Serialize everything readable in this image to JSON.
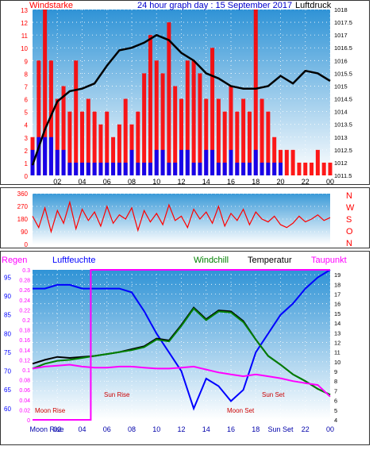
{
  "chart_data": [
    {
      "type": "bar",
      "title": "24 hour graph day : 15 September 2017",
      "left_axis_label": "Windstarke",
      "right_axis_label": "Luftdruck",
      "left_ticks": [
        "0",
        "1",
        "2",
        "3",
        "4",
        "5",
        "6",
        "7",
        "8",
        "9",
        "10",
        "11",
        "12",
        "13"
      ],
      "right_ticks": [
        "1011.5",
        "1012",
        "1012.5",
        "1013",
        "1013.5",
        "1014",
        "1014.5",
        "1015",
        "1015.5",
        "1016",
        "1016.5",
        "1017",
        "1017.5",
        "1018"
      ],
      "x_ticks": [
        "02",
        "04",
        "06",
        "08",
        "10",
        "12",
        "14",
        "16",
        "18",
        "20",
        "22",
        "00"
      ],
      "ylim_left": [
        0,
        13
      ],
      "ylim_right": [
        1011.5,
        1018
      ],
      "series": [
        {
          "name": "gust",
          "color": "#ff0000",
          "x": [
            0,
            0.5,
            1,
            1.5,
            2,
            2.5,
            3,
            3.5,
            4,
            4.5,
            5,
            5.5,
            6,
            6.5,
            7,
            7.5,
            8,
            8.5,
            9,
            9.5,
            10,
            10.5,
            11,
            11.5,
            12,
            12.5,
            13,
            13.5,
            14,
            14.5,
            15,
            15.5,
            16,
            16.5,
            17,
            17.5,
            18,
            18.5,
            19,
            19.5,
            20,
            20.5,
            21,
            21.5,
            22,
            22.5,
            23,
            23.5,
            24
          ],
          "values": [
            3,
            9,
            13,
            9,
            6,
            7,
            5,
            9,
            5,
            6,
            5,
            4,
            5,
            3,
            4,
            6,
            4,
            5,
            8,
            11,
            9,
            8,
            12,
            7,
            6,
            9,
            9,
            8,
            6,
            10,
            6,
            5,
            7,
            5,
            6,
            5,
            13,
            6,
            5,
            3,
            2,
            2,
            2,
            1,
            1,
            1,
            2,
            1,
            1
          ]
        },
        {
          "name": "average",
          "color": "#0000ff",
          "x": [
            0,
            0.5,
            1,
            1.5,
            2,
            2.5,
            3,
            3.5,
            4,
            4.5,
            5,
            5.5,
            6,
            6.5,
            7,
            7.5,
            8,
            8.5,
            9,
            9.5,
            10,
            10.5,
            11,
            11.5,
            12,
            12.5,
            13,
            13.5,
            14,
            14.5,
            15,
            15.5,
            16,
            16.5,
            17,
            17.5,
            18,
            18.5,
            19,
            19.5,
            20,
            20.5,
            21,
            21.5,
            22,
            22.5,
            23,
            23.5,
            24
          ],
          "values": [
            2,
            3,
            3,
            3,
            2,
            2,
            1,
            1,
            1,
            1,
            1,
            1,
            1,
            1,
            1,
            1,
            2,
            1,
            1,
            1,
            2,
            2,
            1,
            1,
            2,
            2,
            1,
            1,
            2,
            2,
            1,
            1,
            2,
            1,
            1,
            1,
            2,
            1,
            1,
            1,
            1,
            0,
            0,
            0,
            0,
            0,
            0,
            0,
            0
          ]
        },
        {
          "name": "pressure",
          "color": "#000000",
          "axis": "right",
          "x": [
            0,
            1,
            2,
            3,
            4,
            5,
            6,
            7,
            8,
            9,
            10,
            11,
            12,
            13,
            14,
            15,
            16,
            17,
            18,
            19,
            20,
            21,
            22,
            23,
            24
          ],
          "values": [
            1011.9,
            1013.3,
            1014.4,
            1014.8,
            1014.9,
            1015.1,
            1015.8,
            1016.4,
            1016.5,
            1016.7,
            1017.0,
            1016.8,
            1016.3,
            1016.0,
            1015.5,
            1015.3,
            1015.0,
            1014.9,
            1014.9,
            1015.0,
            1015.4,
            1015.1,
            1015.6,
            1015.5,
            1015.2
          ]
        }
      ]
    },
    {
      "type": "line",
      "left_ticks": [
        "0",
        "90",
        "180",
        "270",
        "360"
      ],
      "ylim": [
        0,
        360
      ],
      "right_labels": [
        "N",
        "W",
        "S",
        "O",
        "N"
      ],
      "series": [
        {
          "name": "wind direction",
          "color": "#ff0000",
          "x": [
            0,
            0.5,
            1,
            1.5,
            2,
            2.5,
            3,
            3.5,
            4,
            4.5,
            5,
            5.5,
            6,
            6.5,
            7,
            7.5,
            8,
            8.5,
            9,
            9.5,
            10,
            10.5,
            11,
            11.5,
            12,
            12.5,
            13,
            13.5,
            14,
            14.5,
            15,
            15.5,
            16,
            16.5,
            17,
            17.5,
            18,
            18.5,
            19,
            19.5,
            20,
            20.5,
            21,
            21.5,
            22,
            22.5,
            23,
            23.5,
            24
          ],
          "values": [
            200,
            120,
            260,
            90,
            240,
            150,
            300,
            110,
            250,
            170,
            230,
            130,
            270,
            150,
            210,
            180,
            260,
            100,
            240,
            160,
            220,
            140,
            280,
            170,
            200,
            120,
            250,
            180,
            230,
            150,
            270,
            130,
            220,
            170,
            250,
            140,
            230,
            180,
            160,
            200,
            140,
            120,
            150,
            200,
            160,
            180,
            210,
            170,
            190
          ]
        }
      ]
    },
    {
      "type": "line",
      "legend": [
        "Regen",
        "Luftfeuchte",
        "Windchill",
        "Temperatur",
        "Taupunkt"
      ],
      "legend_colors": [
        "#ff00ff",
        "#0000ff",
        "#008000",
        "#000000",
        "#ff00ff"
      ],
      "rain_ticks": [
        "0",
        "0.02",
        "0.04",
        "0.06",
        "0.08",
        "0.1",
        "0.12",
        "0.14",
        "0.16",
        "0.18",
        "0.2",
        "0.22",
        "0.24",
        "0.26",
        "0.28",
        "0.3"
      ],
      "humidity_ticks": [
        "60",
        "65",
        "70",
        "75",
        "80",
        "85",
        "90",
        "95"
      ],
      "temp_ticks": [
        "4",
        "5",
        "6",
        "7",
        "8",
        "9",
        "10",
        "11",
        "12",
        "13",
        "14",
        "15",
        "16",
        "17",
        "18",
        "19"
      ],
      "x_ticks": [
        "Moon Rise",
        "02",
        "04",
        "06",
        "08",
        "10",
        "12",
        "14",
        "16",
        "18",
        "Sun Set",
        "22",
        "00"
      ],
      "annotations": [
        "Moon Rise",
        "Sun Rise",
        "Moon Set",
        "Sun Set"
      ],
      "ylim_humidity": [
        57,
        97
      ],
      "ylim_temp": [
        4,
        19.5
      ],
      "ylim_rain": [
        0,
        0.3
      ],
      "series": [
        {
          "name": "Luftfeuchte",
          "color": "#0000ff",
          "axis": "humidity",
          "x": [
            0,
            1,
            2,
            3,
            4,
            5,
            6,
            7,
            8,
            9,
            10,
            11,
            12,
            13,
            14,
            15,
            16,
            17,
            18,
            19,
            20,
            21,
            22,
            23,
            24
          ],
          "values": [
            92,
            92,
            93,
            93,
            92,
            92,
            92,
            92,
            91,
            86,
            80,
            75,
            70,
            60,
            68,
            66,
            62,
            65,
            75,
            80,
            85,
            88,
            92,
            95,
            97
          ]
        },
        {
          "name": "Temperatur",
          "color": "#000000",
          "axis": "temp",
          "x": [
            0,
            1,
            2,
            3,
            4,
            5,
            6,
            7,
            8,
            9,
            10,
            11,
            12,
            13,
            14,
            15,
            16,
            17,
            18,
            19,
            20,
            21,
            22,
            23,
            24
          ],
          "values": [
            9.8,
            10.2,
            10.5,
            10.4,
            10.5,
            10.6,
            10.8,
            11.0,
            11.3,
            11.6,
            12.4,
            12.2,
            13.8,
            15.6,
            14.4,
            15.3,
            15.2,
            14.2,
            12.3,
            10.6,
            9.7,
            8.7,
            8.0,
            7.2,
            6.6
          ]
        },
        {
          "name": "Windchill",
          "color": "#008000",
          "axis": "temp",
          "x": [
            0,
            1,
            2,
            3,
            4,
            5,
            6,
            7,
            8,
            9,
            10,
            11,
            12,
            13,
            14,
            15,
            16,
            17,
            18,
            19,
            20,
            21,
            22,
            23,
            24
          ],
          "values": [
            9.3,
            9.8,
            10.1,
            10.2,
            10.4,
            10.6,
            10.8,
            11.0,
            11.2,
            11.5,
            12.3,
            12.1,
            13.7,
            15.5,
            14.3,
            15.2,
            15.1,
            14.1,
            12.3,
            10.6,
            9.7,
            8.7,
            8.0,
            7.2,
            6.6
          ]
        },
        {
          "name": "Taupunkt",
          "color": "#ff00ff",
          "axis": "temp",
          "x": [
            0,
            1,
            2,
            3,
            4,
            5,
            6,
            7,
            8,
            9,
            10,
            11,
            12,
            13,
            14,
            15,
            16,
            17,
            18,
            19,
            20,
            21,
            22,
            23,
            24
          ],
          "values": [
            9.3,
            9.5,
            9.6,
            9.7,
            9.5,
            9.4,
            9.4,
            9.5,
            9.5,
            9.4,
            9.3,
            9.3,
            9.4,
            9.5,
            9.2,
            8.9,
            8.7,
            8.5,
            8.7,
            8.5,
            8.3,
            8.0,
            7.8,
            7.6,
            6.4
          ]
        },
        {
          "name": "Regen",
          "color": "#ff00ff",
          "axis": "rain",
          "x": [
            0,
            4.7,
            4.7,
            24
          ],
          "values": [
            0,
            0,
            0.3,
            0.3
          ]
        }
      ]
    }
  ]
}
